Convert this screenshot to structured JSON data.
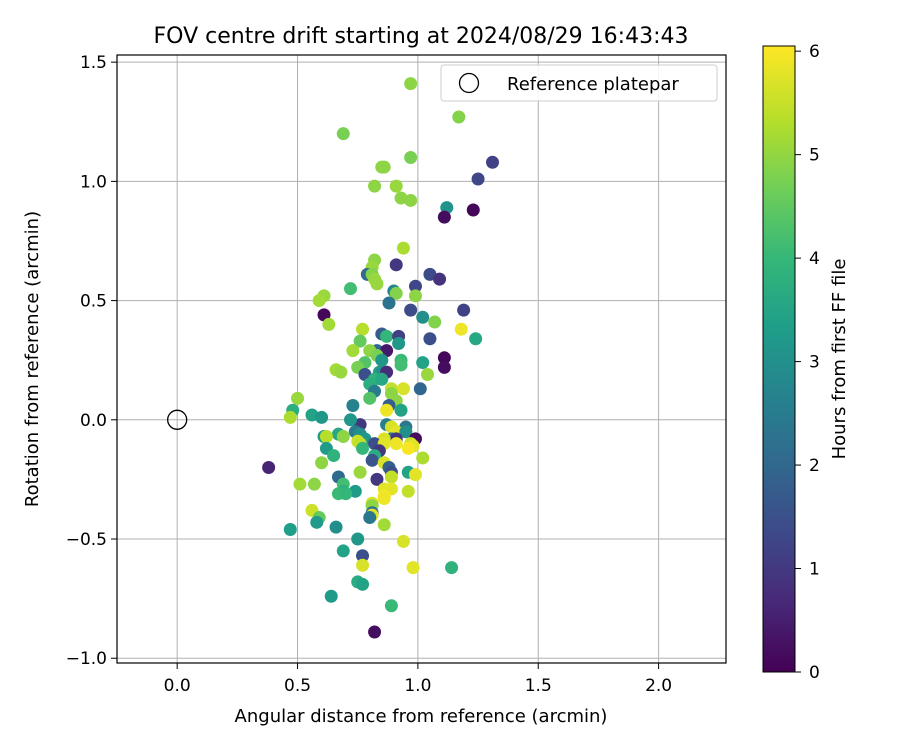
{
  "chart_data": {
    "type": "scatter",
    "title": "FOV centre drift starting at 2024/08/29 16:43:43",
    "xlabel": "Angular distance from reference (arcmin)",
    "ylabel": "Rotation from reference (arcmin)",
    "xlim": [
      -0.25,
      2.28
    ],
    "ylim": [
      -1.02,
      1.53
    ],
    "xticks": [
      0.0,
      0.5,
      1.0,
      1.5,
      2.0
    ],
    "xtick_labels": [
      "0.0",
      "0.5",
      "1.0",
      "1.5",
      "2.0"
    ],
    "yticks": [
      -1.0,
      -0.5,
      0.0,
      0.5,
      1.0,
      1.5
    ],
    "ytick_labels": [
      "−1.0",
      "−0.5",
      "0.0",
      "0.5",
      "1.0",
      "1.5"
    ],
    "grid": true,
    "legend": {
      "position": "top-right",
      "entries": [
        "Reference platepar"
      ]
    },
    "reference_point": {
      "x": 0.0,
      "y": 0.0,
      "label": "Reference platepar"
    },
    "colorbar": {
      "label": "Hours from first FF file",
      "colormap": "viridis",
      "range": [
        0,
        6.05
      ],
      "ticks": [
        0,
        1,
        2,
        3,
        4,
        5,
        6
      ],
      "tick_labels": [
        "0",
        "1",
        "2",
        "3",
        "4",
        "5",
        "6"
      ]
    },
    "points": [
      {
        "x": 0.97,
        "y": 1.41,
        "c": 5.0
      },
      {
        "x": 1.17,
        "y": 1.27,
        "c": 4.9
      },
      {
        "x": 0.69,
        "y": 1.2,
        "c": 4.8
      },
      {
        "x": 1.31,
        "y": 1.08,
        "c": 1.2
      },
      {
        "x": 0.86,
        "y": 1.06,
        "c": 5.0
      },
      {
        "x": 0.85,
        "y": 1.06,
        "c": 5.0
      },
      {
        "x": 0.97,
        "y": 1.1,
        "c": 4.8
      },
      {
        "x": 1.25,
        "y": 1.01,
        "c": 1.3
      },
      {
        "x": 0.82,
        "y": 0.98,
        "c": 5.0
      },
      {
        "x": 0.91,
        "y": 0.98,
        "c": 5.1
      },
      {
        "x": 0.93,
        "y": 0.93,
        "c": 5.0
      },
      {
        "x": 0.97,
        "y": 0.92,
        "c": 5.0
      },
      {
        "x": 1.12,
        "y": 0.89,
        "c": 3.1
      },
      {
        "x": 1.23,
        "y": 0.88,
        "c": 0.1
      },
      {
        "x": 1.11,
        "y": 0.85,
        "c": 0.2
      },
      {
        "x": 0.94,
        "y": 0.72,
        "c": 5.3
      },
      {
        "x": 0.82,
        "y": 0.67,
        "c": 5.0
      },
      {
        "x": 0.81,
        "y": 0.64,
        "c": 5.1
      },
      {
        "x": 0.91,
        "y": 0.65,
        "c": 1.0
      },
      {
        "x": 0.79,
        "y": 0.61,
        "c": 2.1
      },
      {
        "x": 0.81,
        "y": 0.61,
        "c": 4.9
      },
      {
        "x": 1.05,
        "y": 0.61,
        "c": 1.4
      },
      {
        "x": 1.09,
        "y": 0.59,
        "c": 0.9
      },
      {
        "x": 0.82,
        "y": 0.59,
        "c": 5.1
      },
      {
        "x": 0.83,
        "y": 0.57,
        "c": 5.1
      },
      {
        "x": 0.99,
        "y": 0.56,
        "c": 1.3
      },
      {
        "x": 0.72,
        "y": 0.55,
        "c": 4.2
      },
      {
        "x": 0.9,
        "y": 0.54,
        "c": 2.8
      },
      {
        "x": 0.91,
        "y": 0.53,
        "c": 4.9
      },
      {
        "x": 0.61,
        "y": 0.52,
        "c": 5.1
      },
      {
        "x": 0.99,
        "y": 0.52,
        "c": 5.0
      },
      {
        "x": 0.59,
        "y": 0.5,
        "c": 5.2
      },
      {
        "x": 0.88,
        "y": 0.49,
        "c": 2.3
      },
      {
        "x": 0.97,
        "y": 0.46,
        "c": 1.4
      },
      {
        "x": 1.19,
        "y": 0.46,
        "c": 1.2
      },
      {
        "x": 0.61,
        "y": 0.44,
        "c": 0.1
      },
      {
        "x": 1.02,
        "y": 0.43,
        "c": 3.0
      },
      {
        "x": 1.07,
        "y": 0.41,
        "c": 4.9
      },
      {
        "x": 0.63,
        "y": 0.4,
        "c": 5.2
      },
      {
        "x": 1.18,
        "y": 0.38,
        "c": 5.9
      },
      {
        "x": 0.77,
        "y": 0.38,
        "c": 5.4
      },
      {
        "x": 0.85,
        "y": 0.36,
        "c": 1.8
      },
      {
        "x": 0.87,
        "y": 0.35,
        "c": 4.0
      },
      {
        "x": 0.92,
        "y": 0.35,
        "c": 1.2
      },
      {
        "x": 1.05,
        "y": 0.34,
        "c": 1.5
      },
      {
        "x": 1.24,
        "y": 0.34,
        "c": 3.6
      },
      {
        "x": 0.76,
        "y": 0.33,
        "c": 4.6
      },
      {
        "x": 0.92,
        "y": 0.32,
        "c": 3.2
      },
      {
        "x": 0.83,
        "y": 0.29,
        "c": 2.0
      },
      {
        "x": 0.87,
        "y": 0.29,
        "c": 0.4
      },
      {
        "x": 0.73,
        "y": 0.29,
        "c": 5.2
      },
      {
        "x": 0.8,
        "y": 0.29,
        "c": 5.0
      },
      {
        "x": 0.83,
        "y": 0.27,
        "c": 4.8
      },
      {
        "x": 1.11,
        "y": 0.26,
        "c": 0.1
      },
      {
        "x": 0.85,
        "y": 0.25,
        "c": 3.2
      },
      {
        "x": 0.93,
        "y": 0.25,
        "c": 4.1
      },
      {
        "x": 1.02,
        "y": 0.24,
        "c": 3.5
      },
      {
        "x": 0.78,
        "y": 0.24,
        "c": 4.4
      },
      {
        "x": 0.93,
        "y": 0.23,
        "c": 4.2
      },
      {
        "x": 1.11,
        "y": 0.22,
        "c": 0.2
      },
      {
        "x": 0.75,
        "y": 0.22,
        "c": 4.8
      },
      {
        "x": 0.66,
        "y": 0.21,
        "c": 5.2
      },
      {
        "x": 0.84,
        "y": 0.2,
        "c": 3.5
      },
      {
        "x": 0.85,
        "y": 0.2,
        "c": 3.1
      },
      {
        "x": 0.87,
        "y": 0.2,
        "c": 0.8
      },
      {
        "x": 0.68,
        "y": 0.2,
        "c": 5.1
      },
      {
        "x": 0.78,
        "y": 0.19,
        "c": 1.5
      },
      {
        "x": 1.04,
        "y": 0.19,
        "c": 5.1
      },
      {
        "x": 0.82,
        "y": 0.17,
        "c": 3.9
      },
      {
        "x": 0.85,
        "y": 0.17,
        "c": 3.6
      },
      {
        "x": 0.8,
        "y": 0.15,
        "c": 3.8
      },
      {
        "x": 0.89,
        "y": 0.13,
        "c": 5.5
      },
      {
        "x": 0.94,
        "y": 0.13,
        "c": 5.7
      },
      {
        "x": 1.01,
        "y": 0.13,
        "c": 2.0
      },
      {
        "x": 0.82,
        "y": 0.12,
        "c": 2.5
      },
      {
        "x": 0.89,
        "y": 0.11,
        "c": 5.0
      },
      {
        "x": 0.8,
        "y": 0.09,
        "c": 4.4
      },
      {
        "x": 0.91,
        "y": 0.08,
        "c": 5.0
      },
      {
        "x": 0.5,
        "y": 0.09,
        "c": 5.1
      },
      {
        "x": 0.88,
        "y": 0.06,
        "c": 1.8
      },
      {
        "x": 0.73,
        "y": 0.06,
        "c": 2.7
      },
      {
        "x": 0.87,
        "y": 0.04,
        "c": 5.9
      },
      {
        "x": 0.93,
        "y": 0.04,
        "c": 3.5
      },
      {
        "x": 0.48,
        "y": 0.04,
        "c": 3.8
      },
      {
        "x": 0.56,
        "y": 0.02,
        "c": 3.5
      },
      {
        "x": 0.47,
        "y": 0.01,
        "c": 5.3
      },
      {
        "x": 0.6,
        "y": 0.01,
        "c": 3.2
      },
      {
        "x": 0.76,
        "y": -0.02,
        "c": 1.0
      },
      {
        "x": 0.87,
        "y": -0.02,
        "c": 2.6
      },
      {
        "x": 0.72,
        "y": 0.0,
        "c": 3.2
      },
      {
        "x": 0.95,
        "y": -0.03,
        "c": 2.4
      },
      {
        "x": 0.89,
        "y": -0.03,
        "c": 5.7
      },
      {
        "x": 0.74,
        "y": -0.05,
        "c": 2.5
      },
      {
        "x": 0.91,
        "y": -0.05,
        "c": 5.8
      },
      {
        "x": 0.95,
        "y": -0.05,
        "c": 3.0
      },
      {
        "x": 0.76,
        "y": -0.06,
        "c": 3.0
      },
      {
        "x": 0.67,
        "y": -0.06,
        "c": 3.6
      },
      {
        "x": 0.61,
        "y": -0.07,
        "c": 3.3
      },
      {
        "x": 0.62,
        "y": -0.07,
        "c": 5.4
      },
      {
        "x": 0.69,
        "y": -0.07,
        "c": 5.0
      },
      {
        "x": 0.78,
        "y": -0.08,
        "c": 3.2
      },
      {
        "x": 0.89,
        "y": -0.08,
        "c": 2.3
      },
      {
        "x": 0.91,
        "y": -0.08,
        "c": 1.0
      },
      {
        "x": 0.99,
        "y": -0.08,
        "c": 0.2
      },
      {
        "x": 0.86,
        "y": -0.08,
        "c": 5.7
      },
      {
        "x": 0.75,
        "y": -0.09,
        "c": 5.6
      },
      {
        "x": 0.76,
        "y": -0.1,
        "c": 5.5
      },
      {
        "x": 0.82,
        "y": -0.1,
        "c": 1.5
      },
      {
        "x": 0.86,
        "y": -0.1,
        "c": 5.8
      },
      {
        "x": 0.91,
        "y": -0.1,
        "c": 5.9
      },
      {
        "x": 0.97,
        "y": -0.1,
        "c": 5.6
      },
      {
        "x": 0.98,
        "y": -0.11,
        "c": 5.8
      },
      {
        "x": 0.96,
        "y": -0.12,
        "c": 6.0
      },
      {
        "x": 0.77,
        "y": -0.12,
        "c": 4.0
      },
      {
        "x": 0.62,
        "y": -0.12,
        "c": 3.3
      },
      {
        "x": 0.84,
        "y": -0.13,
        "c": 1.0
      },
      {
        "x": 0.65,
        "y": -0.15,
        "c": 3.9
      },
      {
        "x": 0.82,
        "y": -0.15,
        "c": 3.7
      },
      {
        "x": 1.02,
        "y": -0.16,
        "c": 5.3
      },
      {
        "x": 0.81,
        "y": -0.17,
        "c": 1.6
      },
      {
        "x": 0.6,
        "y": -0.18,
        "c": 5.0
      },
      {
        "x": 0.86,
        "y": -0.18,
        "c": 5.7
      },
      {
        "x": 0.38,
        "y": -0.2,
        "c": 0.6
      },
      {
        "x": 0.88,
        "y": -0.2,
        "c": 1.9
      },
      {
        "x": 0.89,
        "y": -0.22,
        "c": 1.5
      },
      {
        "x": 0.76,
        "y": -0.22,
        "c": 5.1
      },
      {
        "x": 0.96,
        "y": -0.22,
        "c": 3.5
      },
      {
        "x": 0.99,
        "y": -0.23,
        "c": 5.8
      },
      {
        "x": 0.89,
        "y": -0.24,
        "c": 5.5
      },
      {
        "x": 0.67,
        "y": -0.24,
        "c": 2.1
      },
      {
        "x": 0.83,
        "y": -0.25,
        "c": 1.0
      },
      {
        "x": 0.57,
        "y": -0.27,
        "c": 5.0
      },
      {
        "x": 0.51,
        "y": -0.27,
        "c": 5.2
      },
      {
        "x": 0.69,
        "y": -0.27,
        "c": 4.2
      },
      {
        "x": 0.86,
        "y": -0.29,
        "c": 5.8
      },
      {
        "x": 0.89,
        "y": -0.29,
        "c": 5.8
      },
      {
        "x": 0.74,
        "y": -0.3,
        "c": 3.3
      },
      {
        "x": 0.69,
        "y": -0.3,
        "c": 3.8
      },
      {
        "x": 0.96,
        "y": -0.3,
        "c": 5.5
      },
      {
        "x": 0.67,
        "y": -0.31,
        "c": 4.1
      },
      {
        "x": 0.7,
        "y": -0.31,
        "c": 4.0
      },
      {
        "x": 0.86,
        "y": -0.32,
        "c": 6.0
      },
      {
        "x": 0.86,
        "y": -0.33,
        "c": 5.9
      },
      {
        "x": 0.81,
        "y": -0.35,
        "c": 5.7
      },
      {
        "x": 0.81,
        "y": -0.36,
        "c": 5.0
      },
      {
        "x": 0.56,
        "y": -0.38,
        "c": 5.6
      },
      {
        "x": 0.81,
        "y": -0.39,
        "c": 2.2
      },
      {
        "x": 0.81,
        "y": -0.4,
        "c": 5.8
      },
      {
        "x": 0.8,
        "y": -0.41,
        "c": 2.4
      },
      {
        "x": 0.59,
        "y": -0.41,
        "c": 4.6
      },
      {
        "x": 0.58,
        "y": -0.43,
        "c": 3.3
      },
      {
        "x": 0.86,
        "y": -0.44,
        "c": 5.2
      },
      {
        "x": 0.66,
        "y": -0.45,
        "c": 3.0
      },
      {
        "x": 0.47,
        "y": -0.46,
        "c": 3.4
      },
      {
        "x": 0.75,
        "y": -0.5,
        "c": 3.2
      },
      {
        "x": 0.94,
        "y": -0.51,
        "c": 5.7
      },
      {
        "x": 0.69,
        "y": -0.55,
        "c": 3.5
      },
      {
        "x": 0.77,
        "y": -0.57,
        "c": 1.5
      },
      {
        "x": 0.77,
        "y": -0.61,
        "c": 5.7
      },
      {
        "x": 0.98,
        "y": -0.62,
        "c": 5.8
      },
      {
        "x": 1.14,
        "y": -0.62,
        "c": 3.9
      },
      {
        "x": 0.75,
        "y": -0.68,
        "c": 3.7
      },
      {
        "x": 0.77,
        "y": -0.69,
        "c": 3.5
      },
      {
        "x": 0.64,
        "y": -0.74,
        "c": 3.3
      },
      {
        "x": 0.89,
        "y": -0.78,
        "c": 4.1
      },
      {
        "x": 0.82,
        "y": -0.89,
        "c": 0.2
      }
    ]
  }
}
